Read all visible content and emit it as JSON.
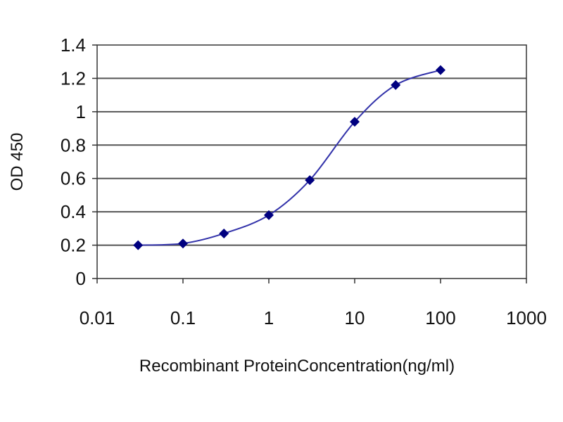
{
  "chart_data": {
    "type": "line",
    "title": "",
    "xlabel": "Recombinant ProteinConcentration(ng/ml)",
    "ylabel": "OD 450",
    "x_scale": "log",
    "xlim": [
      0.01,
      1000
    ],
    "ylim": [
      0,
      1.4
    ],
    "x_ticks": [
      "0.01",
      "0.1",
      "1",
      "10",
      "100",
      "1000"
    ],
    "y_ticks": [
      "0",
      "0.2",
      "0.4",
      "0.6",
      "0.8",
      "1",
      "1.2",
      "1.4"
    ],
    "grid": "horizontal",
    "legend": "none",
    "series": [
      {
        "x": [
          0.03,
          0.1,
          0.3,
          1,
          3,
          10,
          30,
          100
        ],
        "y": [
          0.2,
          0.21,
          0.27,
          0.38,
          0.59,
          0.94,
          1.16,
          1.25
        ]
      }
    ],
    "colors": {
      "line": "#3333aa",
      "marker": "#000080",
      "grid": "#555555",
      "axis": "#333333"
    }
  }
}
